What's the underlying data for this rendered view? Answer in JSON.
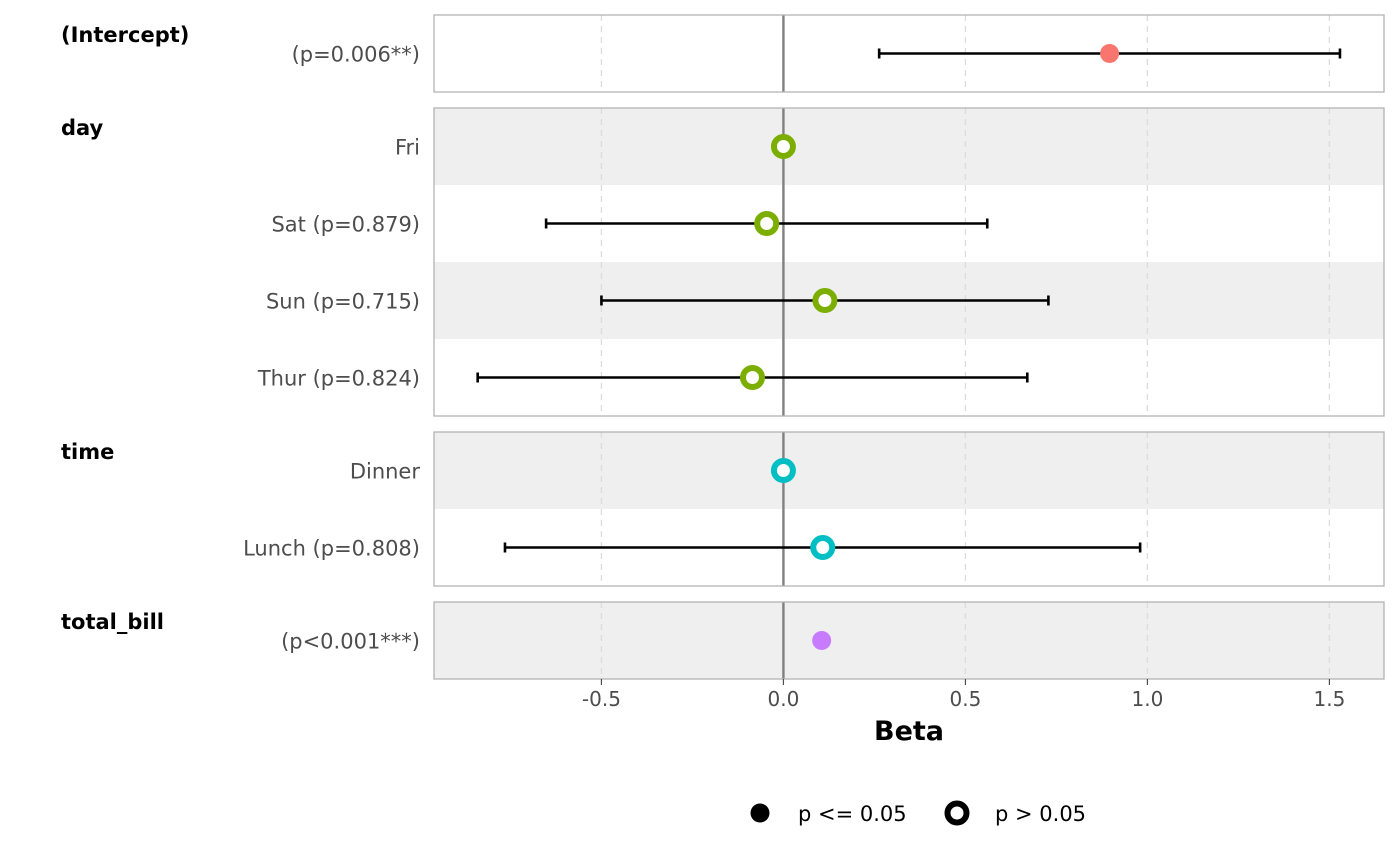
{
  "chart_data": {
    "type": "forest",
    "xlabel": "Beta",
    "xlim": [
      -0.96,
      1.65
    ],
    "xticks": [
      -0.5,
      0.0,
      0.5,
      1.0,
      1.5
    ],
    "xtick_labels": [
      "-0.5",
      "0.0",
      "0.5",
      "1.0",
      "1.5"
    ],
    "reference_line": 0,
    "grid": true,
    "colors": {
      "intercept": "#F8766D",
      "day": "#7CAE00",
      "time": "#00BFC4",
      "total_bill": "#C77CFF",
      "panel_border": "#b3b3b3",
      "stripe": "#efefef"
    },
    "groups": [
      {
        "title": "(Intercept)",
        "color_key": "intercept",
        "rows": [
          {
            "label": "(p=0.006**)",
            "estimate": 0.896,
            "lower": 0.263,
            "upper": 1.529,
            "significant": true
          }
        ]
      },
      {
        "title": "day",
        "color_key": "day",
        "rows": [
          {
            "label": "Fri",
            "estimate": 0.0,
            "lower": null,
            "upper": null,
            "significant": false
          },
          {
            "label": "Sat (p=0.879)",
            "estimate": -0.046,
            "lower": -0.652,
            "upper": 0.56,
            "significant": false
          },
          {
            "label": "Sun (p=0.715)",
            "estimate": 0.114,
            "lower": -0.5,
            "upper": 0.728,
            "significant": false
          },
          {
            "label": "Thur (p=0.824)",
            "estimate": -0.085,
            "lower": -0.84,
            "upper": 0.67,
            "significant": false
          }
        ]
      },
      {
        "title": "time",
        "color_key": "time",
        "rows": [
          {
            "label": "Dinner",
            "estimate": 0.0,
            "lower": null,
            "upper": null,
            "significant": false
          },
          {
            "label": "Lunch (p=0.808)",
            "estimate": 0.108,
            "lower": -0.765,
            "upper": 0.98,
            "significant": false
          }
        ]
      },
      {
        "title": "total_bill",
        "color_key": "total_bill",
        "rows": [
          {
            "label": "(p<0.001***)",
            "estimate": 0.105,
            "lower": null,
            "upper": null,
            "significant": true
          }
        ]
      }
    ],
    "legend": {
      "placement": "bottom",
      "items": [
        {
          "label": "p <= 0.05",
          "shape": "filled-circle"
        },
        {
          "label": "p > 0.05",
          "shape": "hollow-circle"
        }
      ]
    }
  }
}
